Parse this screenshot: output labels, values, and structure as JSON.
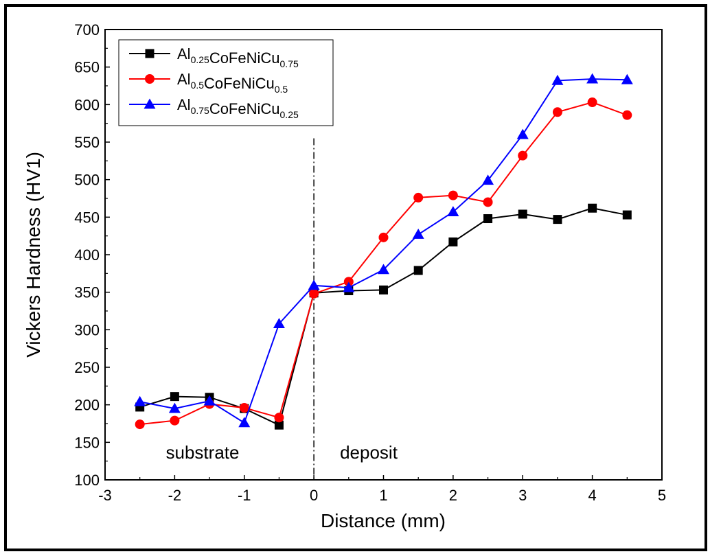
{
  "chart_data": {
    "type": "line",
    "xlabel": "Distance (mm)",
    "ylabel": "Vickers Hardness (HV1)",
    "xlim": [
      -3,
      5
    ],
    "ylim": [
      100,
      700
    ],
    "xticks": [
      "-3",
      "-2",
      "-1",
      "0",
      "1",
      "2",
      "3",
      "4",
      "5"
    ],
    "yticks": [
      "100",
      "150",
      "200",
      "250",
      "300",
      "350",
      "400",
      "450",
      "500",
      "550",
      "600",
      "650",
      "700"
    ],
    "divider_x": 0,
    "regions": {
      "left": "substrate",
      "right": "deposit"
    },
    "legend_position": "top-left",
    "x": [
      -2.5,
      -2,
      -1.5,
      -1,
      -0.5,
      0,
      0.5,
      1,
      1.5,
      2,
      2.5,
      3,
      3.5,
      4,
      4.5
    ],
    "series": [
      {
        "name": "Al0.25CoFeNiCu0.75",
        "label_parts": [
          [
            "Al",
            "0.25"
          ],
          [
            "CoFeNiCu",
            "0.75"
          ]
        ],
        "color": "#000000",
        "marker": "square",
        "values": [
          197,
          211,
          210,
          195,
          173,
          349,
          352,
          353,
          379,
          417,
          448,
          454,
          447,
          462,
          453
        ]
      },
      {
        "name": "Al0.5CoFeNiCu0.5",
        "label_parts": [
          [
            "Al",
            "0.5"
          ],
          [
            "CoFeNiCu",
            "0.5"
          ]
        ],
        "color": "#ff0000",
        "marker": "circle",
        "values": [
          174,
          179,
          201,
          196,
          183,
          348,
          364,
          423,
          476,
          479,
          470,
          532,
          590,
          603,
          586
        ]
      },
      {
        "name": "Al0.75CoFeNiCu0.25",
        "label_parts": [
          [
            "Al",
            "0.75"
          ],
          [
            "CoFeNiCu",
            "0.25"
          ]
        ],
        "color": "#0000ff",
        "marker": "triangle",
        "values": [
          204,
          195,
          205,
          176,
          308,
          359,
          356,
          380,
          427,
          457,
          499,
          560,
          632,
          634,
          633
        ]
      }
    ]
  }
}
